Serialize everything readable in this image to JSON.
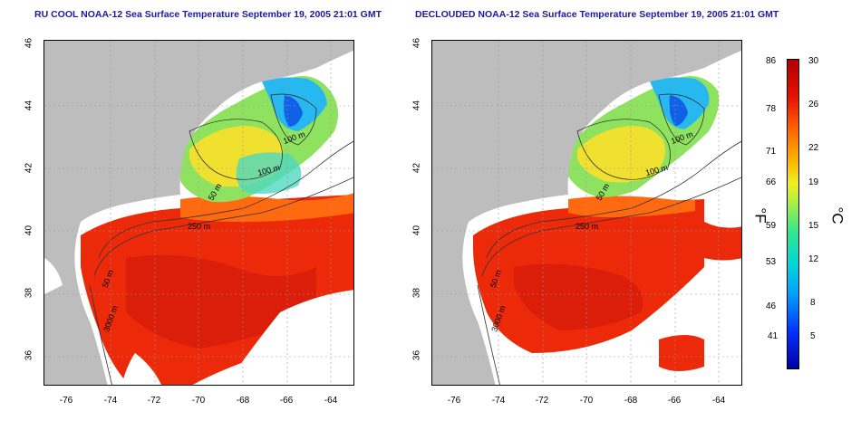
{
  "titles": {
    "left": "RU COOL NOAA-12 Sea Surface Temperature September 19, 2005 21:01 GMT",
    "right": "DECLOUDED NOAA-12 Sea Surface Temperature September 19, 2005 21:01 GMT"
  },
  "axes": {
    "x_ticks": [
      "-76",
      "-74",
      "-72",
      "-70",
      "-68",
      "-66",
      "-64"
    ],
    "y_ticks": [
      "46",
      "44",
      "42",
      "40",
      "38",
      "36"
    ]
  },
  "contour_labels": {
    "a": "100 m",
    "b": "100 m",
    "c": "50 m",
    "d": "250 m",
    "e": "50 m",
    "f": "3000 m"
  },
  "colorbar": {
    "fahrenheit_ticks": [
      "86",
      "78",
      "71",
      "66",
      "59",
      "53",
      "46",
      "41"
    ],
    "celsius_ticks": [
      "30",
      "26",
      "22",
      "19",
      "15",
      "12",
      "8",
      "5"
    ],
    "unit_f": "°F",
    "unit_c": "°C"
  },
  "colors": {
    "land": "#bdbdbd",
    "cloud": "#ffffff",
    "warm": "#ee2a0c",
    "cold": "#1e9ef0",
    "title": "#1a1aa0"
  }
}
